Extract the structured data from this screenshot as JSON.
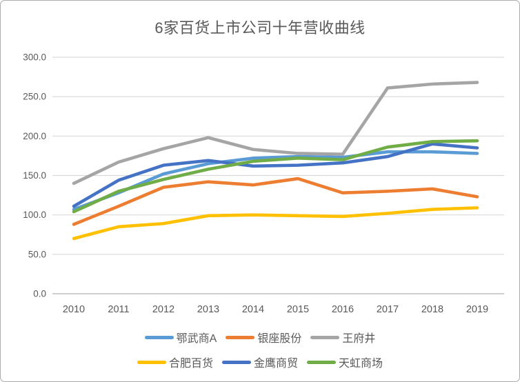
{
  "frame": {
    "background": "#FFFFFF",
    "border_color": "#ABABAB"
  },
  "chart_data": {
    "type": "line",
    "title": "6家百货上市公司十年营收曲线",
    "categories": [
      "2010",
      "2011",
      "2012",
      "2013",
      "2014",
      "2015",
      "2016",
      "2017",
      "2018",
      "2019"
    ],
    "series": [
      {
        "name": "鄂武商A",
        "color": "#5B9BD5",
        "values": [
          107,
          128,
          152,
          165,
          172,
          174,
          173,
          180,
          180,
          178
        ]
      },
      {
        "name": "银座股份",
        "color": "#ED7D31",
        "values": [
          88,
          111,
          135,
          142,
          138,
          146,
          128,
          130,
          133,
          123
        ]
      },
      {
        "name": "王府井",
        "color": "#A5A5A5",
        "values": [
          140,
          167,
          184,
          198,
          183,
          178,
          177,
          261,
          266,
          268
        ]
      },
      {
        "name": "合肥百货",
        "color": "#FFC000",
        "values": [
          70,
          85,
          89,
          99,
          100,
          99,
          98,
          102,
          107,
          109
        ]
      },
      {
        "name": "金鹰商贸",
        "color": "#4472C4",
        "values": [
          111,
          144,
          163,
          169,
          162,
          163,
          166,
          174,
          190,
          185
        ]
      },
      {
        "name": "天虹商场",
        "color": "#70AD47",
        "values": [
          104,
          130,
          145,
          158,
          168,
          172,
          170,
          186,
          193,
          194
        ]
      }
    ],
    "ylim": [
      0,
      300
    ],
    "ytick_step": 50,
    "ytick_labels": [
      "0.0",
      "50.0",
      "100.0",
      "150.0",
      "200.0",
      "250.0",
      "300.0"
    ],
    "grid": true,
    "legend_position": "bottom",
    "legend_rows": [
      [
        0,
        1,
        2
      ],
      [
        3,
        4,
        5
      ]
    ]
  },
  "styles": {
    "grid_color": "#D9D9D9",
    "axis_line_color": "#BFBFBF",
    "tick_label_color": "#595959",
    "title_color": "#595959"
  }
}
